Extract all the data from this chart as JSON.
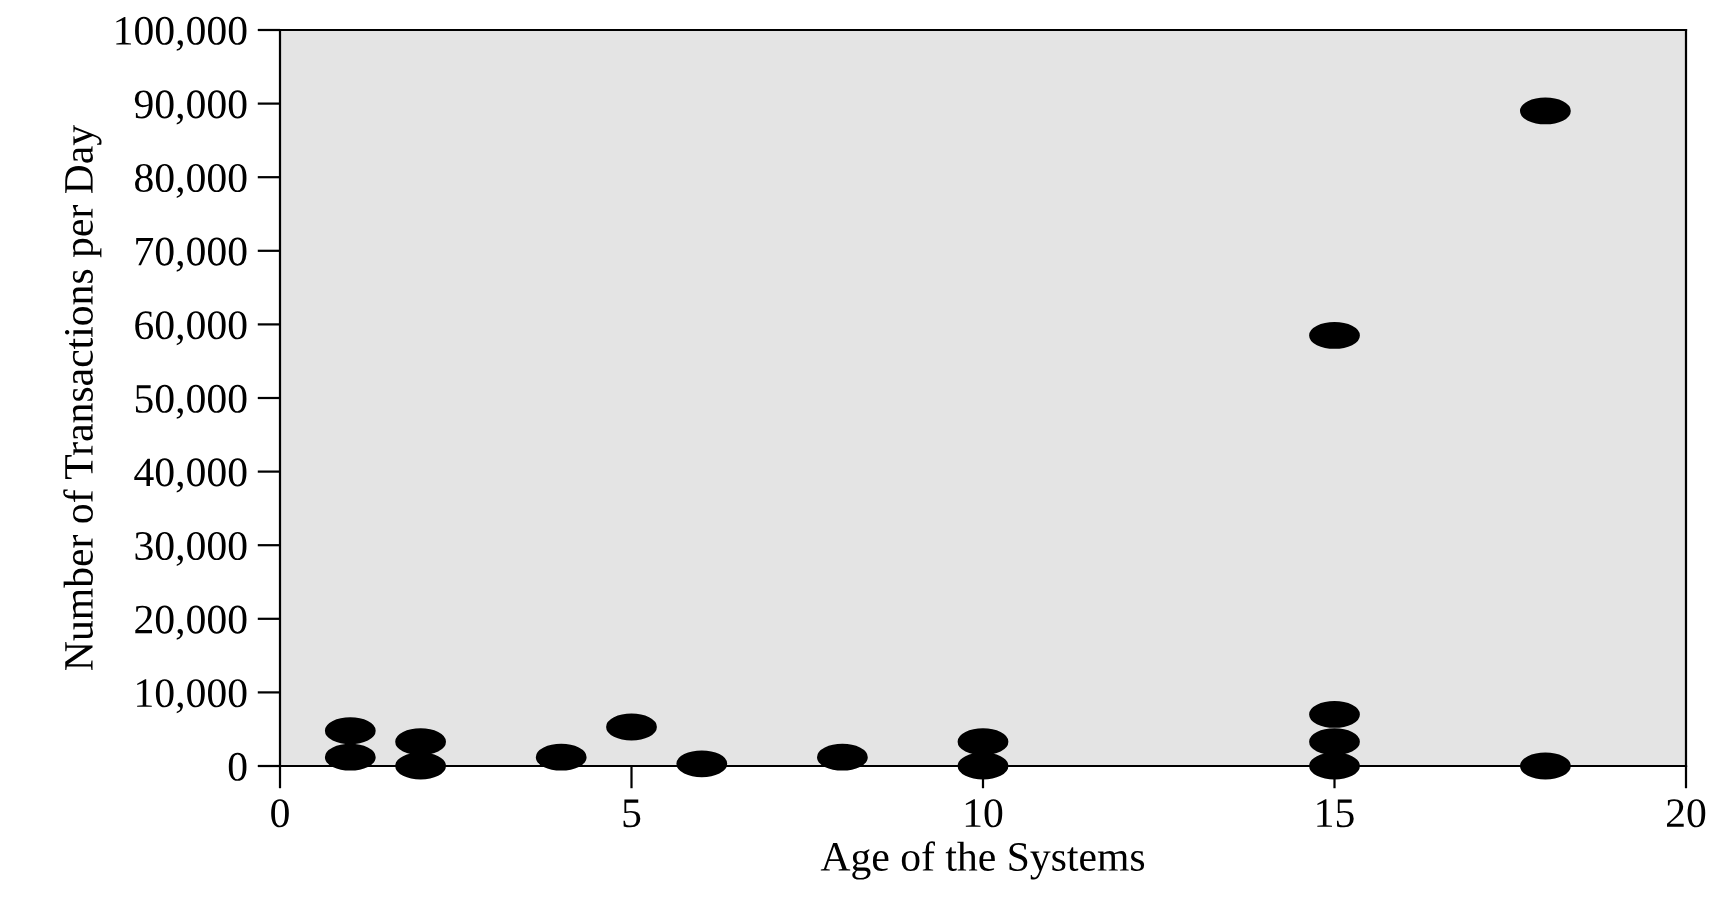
{
  "chart_data": {
    "type": "scatter",
    "xlabel": "Age of the Systems",
    "ylabel": "Number of Transactions per Day",
    "x": [
      1,
      1,
      2,
      2,
      4,
      5,
      6,
      8,
      10,
      10,
      15,
      15,
      15,
      15,
      18,
      18
    ],
    "values": [
      4800,
      1200,
      3300,
      0,
      1200,
      5300,
      300,
      1200,
      3300,
      0,
      58500,
      7000,
      3300,
      0,
      89000,
      0
    ],
    "color": "#000000",
    "marker": "circle",
    "xlim": [
      0,
      20
    ],
    "xticks": [
      0,
      5,
      10,
      15,
      20
    ],
    "ylim": [
      0,
      100000
    ],
    "yticks": [
      {
        "value": 0,
        "label": "0"
      },
      {
        "value": 10000,
        "label": "10,000"
      },
      {
        "value": 20000,
        "label": "20,000"
      },
      {
        "value": 30000,
        "label": "30,000"
      },
      {
        "value": 40000,
        "label": "40,000"
      },
      {
        "value": 50000,
        "label": "50,000"
      },
      {
        "value": 60000,
        "label": "60,000"
      },
      {
        "value": 70000,
        "label": "70,000"
      },
      {
        "value": 80000,
        "label": "80,000"
      },
      {
        "value": 90000,
        "label": "90,000"
      },
      {
        "value": 100000,
        "label": "100,000"
      }
    ],
    "grid": false,
    "legend": false
  }
}
